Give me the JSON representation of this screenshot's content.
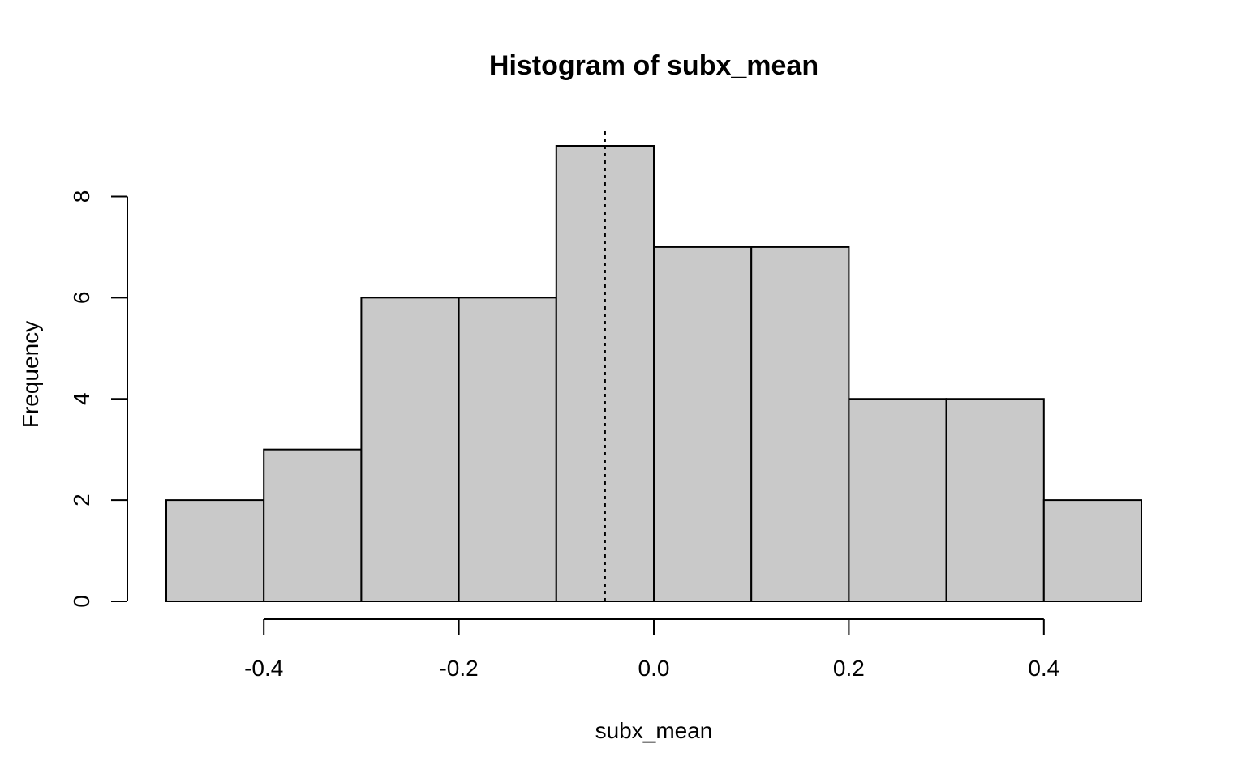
{
  "chart_data": {
    "type": "bar",
    "subtype": "histogram",
    "title": "Histogram of subx_mean",
    "xlabel": "subx_mean",
    "ylabel": "Frequency",
    "bin_edges": [
      -0.5,
      -0.4,
      -0.3,
      -0.2,
      -0.1,
      0.0,
      0.1,
      0.2,
      0.3,
      0.4,
      0.5
    ],
    "counts": [
      2,
      3,
      6,
      6,
      9,
      7,
      7,
      4,
      4,
      2
    ],
    "xlim": [
      -0.5,
      0.5
    ],
    "ylim": [
      0,
      9
    ],
    "x_ticks": [
      -0.4,
      -0.2,
      0.0,
      0.2,
      0.4
    ],
    "x_tick_labels": [
      "-0.4",
      "-0.2",
      "0.0",
      "0.2",
      "0.4"
    ],
    "y_ticks": [
      0,
      2,
      4,
      6,
      8
    ],
    "y_tick_labels": [
      "0",
      "2",
      "4",
      "6",
      "8"
    ],
    "reference_line": {
      "x": -0.05,
      "style": "dotted"
    },
    "bar_fill": "#c9c9c9",
    "grid": false
  }
}
